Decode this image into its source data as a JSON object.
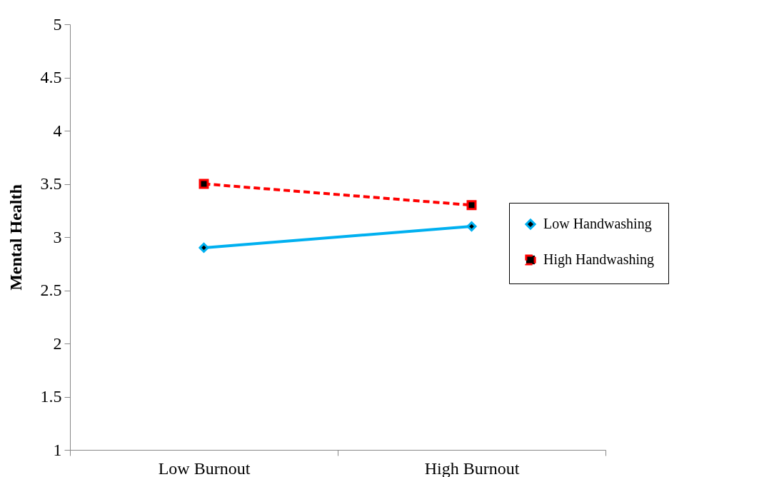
{
  "chart_data": {
    "type": "line",
    "ylabel": "Mental Health",
    "categories": [
      "Low Burnout",
      "High Burnout"
    ],
    "series": [
      {
        "name": "Low Handwashing",
        "color": "#00b0f0",
        "values": [
          2.9,
          3.1
        ],
        "marker": "diamond",
        "line_style": "solid"
      },
      {
        "name": "High Handwashing",
        "color": "#ff0000",
        "values": [
          3.5,
          3.3
        ],
        "marker": "square",
        "line_style": "dashed"
      }
    ],
    "ylim": [
      1,
      5
    ],
    "yticks": [
      1,
      1.5,
      2,
      2.5,
      3,
      3.5,
      4,
      4.5,
      5
    ],
    "grid": false,
    "legend": "right"
  }
}
